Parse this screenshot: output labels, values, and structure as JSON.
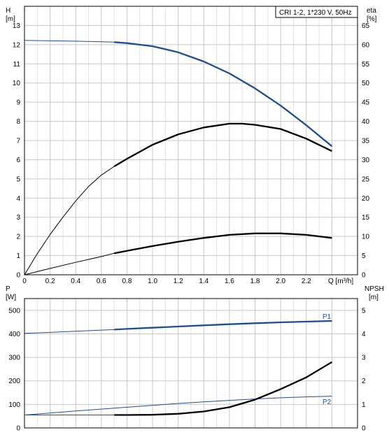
{
  "chart_data": [
    {
      "type": "line",
      "title": "CRI 1-2, 1*230 V, 50Hz",
      "y_left_label": [
        "H",
        "[m]"
      ],
      "y_right_label": [
        "eta",
        "[%]"
      ],
      "x_label": "Q [m³/h]",
      "xlim": [
        0,
        2.6
      ],
      "ylim_left": [
        0,
        14
      ],
      "ylim_right": [
        0,
        70
      ],
      "x_ticks": [
        "0",
        "0.2",
        "0.4",
        "0.6",
        "0.8",
        "1.0",
        "1.2",
        "1.4",
        "1.6",
        "1.8",
        "2.0",
        "2.2"
      ],
      "x_tick_values": [
        0,
        0.2,
        0.4,
        0.6,
        0.8,
        1.0,
        1.2,
        1.4,
        1.6,
        1.8,
        2.0,
        2.2
      ],
      "y_left_ticks": [
        0,
        1,
        2,
        3,
        4,
        5,
        6,
        7,
        8,
        9,
        10,
        11,
        12,
        13
      ],
      "y_right_ticks": [
        0,
        5,
        10,
        15,
        20,
        25,
        30,
        35,
        40,
        45,
        50,
        55,
        60,
        65
      ],
      "grid": true,
      "series": [
        {
          "axis": "left",
          "color": "#1f4e8c",
          "points": [
            [
              0,
              12.22
            ],
            [
              0.2,
              12.2
            ],
            [
              0.4,
              12.18
            ],
            [
              0.6,
              12.15
            ],
            [
              0.7,
              12.13
            ],
            [
              0.8,
              12.08
            ],
            [
              1.0,
              11.92
            ],
            [
              1.2,
              11.6
            ],
            [
              1.4,
              11.12
            ],
            [
              1.6,
              10.5
            ],
            [
              1.8,
              9.72
            ],
            [
              2.0,
              8.82
            ],
            [
              2.2,
              7.8
            ],
            [
              2.4,
              6.7
            ]
          ],
          "thick_from_x": 0.7
        },
        {
          "axis": "left",
          "color": "#000000",
          "points": [
            [
              0,
              0
            ],
            [
              0.1,
              1.1
            ],
            [
              0.2,
              2.1
            ],
            [
              0.3,
              3.0
            ],
            [
              0.4,
              3.85
            ],
            [
              0.5,
              4.6
            ],
            [
              0.6,
              5.2
            ],
            [
              0.7,
              5.65
            ],
            [
              0.8,
              6.05
            ],
            [
              1.0,
              6.78
            ],
            [
              1.2,
              7.32
            ],
            [
              1.4,
              7.68
            ],
            [
              1.6,
              7.88
            ],
            [
              1.7,
              7.88
            ],
            [
              1.8,
              7.82
            ],
            [
              2.0,
              7.6
            ],
            [
              2.2,
              7.1
            ],
            [
              2.4,
              6.45
            ]
          ],
          "thick_from_x": 0.7
        },
        {
          "axis": "left",
          "color": "#000000",
          "points": [
            [
              0,
              0
            ],
            [
              0.2,
              0.33
            ],
            [
              0.4,
              0.65
            ],
            [
              0.6,
              0.95
            ],
            [
              0.7,
              1.12
            ],
            [
              0.8,
              1.25
            ],
            [
              1.0,
              1.5
            ],
            [
              1.2,
              1.72
            ],
            [
              1.4,
              1.92
            ],
            [
              1.6,
              2.08
            ],
            [
              1.8,
              2.16
            ],
            [
              2.0,
              2.16
            ],
            [
              2.2,
              2.08
            ],
            [
              2.4,
              1.92
            ]
          ],
          "thick_from_x": 0.7
        }
      ]
    },
    {
      "type": "line",
      "y_left_label": [
        "P",
        "[W]"
      ],
      "y_right_label": [
        "NPSH",
        "[m]"
      ],
      "xlim": [
        0,
        2.6
      ],
      "ylim_left": [
        0,
        550
      ],
      "ylim_right": [
        0,
        5.5
      ],
      "y_left_ticks": [
        0,
        100,
        200,
        300,
        400,
        500
      ],
      "y_right_ticks": [
        0,
        1,
        2,
        3,
        4,
        5
      ],
      "grid": true,
      "series": [
        {
          "name": "P1",
          "axis": "left",
          "color": "#1f4e8c",
          "points": [
            [
              0,
              402
            ],
            [
              0.2,
              406
            ],
            [
              0.4,
              411
            ],
            [
              0.6,
              416
            ],
            [
              0.7,
              418
            ],
            [
              0.8,
              421
            ],
            [
              1.0,
              426
            ],
            [
              1.2,
              431
            ],
            [
              1.4,
              436
            ],
            [
              1.6,
              441
            ],
            [
              1.8,
              445
            ],
            [
              2.0,
              449
            ],
            [
              2.2,
              452
            ],
            [
              2.4,
              455
            ]
          ],
          "thick_from_x": 0.7
        },
        {
          "name": "P2",
          "axis": "left",
          "color": "#1f4e8c",
          "points": [
            [
              0,
              55
            ],
            [
              0.2,
              63
            ],
            [
              0.4,
              72
            ],
            [
              0.6,
              80
            ],
            [
              0.8,
              88
            ],
            [
              1.0,
              96
            ],
            [
              1.2,
              104
            ],
            [
              1.4,
              111
            ],
            [
              1.6,
              117
            ],
            [
              1.8,
              123
            ],
            [
              2.0,
              128
            ],
            [
              2.2,
              132
            ],
            [
              2.4,
              135
            ]
          ],
          "thick_from_x": 99
        },
        {
          "axis": "right",
          "color": "#000000",
          "points": [
            [
              0.7,
              0.55
            ],
            [
              0.8,
              0.55
            ],
            [
              1.0,
              0.56
            ],
            [
              1.2,
              0.6
            ],
            [
              1.4,
              0.7
            ],
            [
              1.6,
              0.88
            ],
            [
              1.8,
              1.2
            ],
            [
              2.0,
              1.65
            ],
            [
              2.2,
              2.15
            ],
            [
              2.4,
              2.8
            ]
          ],
          "thick_from_x": 0.7
        },
        {
          "axis": "right",
          "color": "#1f4e8c",
          "points": [
            [
              0,
              0.55
            ],
            [
              0.7,
              0.55
            ]
          ],
          "thick_from_x": 99
        }
      ]
    }
  ]
}
